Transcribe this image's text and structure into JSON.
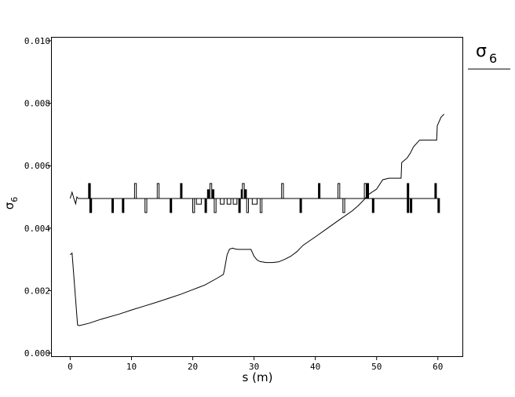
{
  "chart_data": {
    "type": "line",
    "title": "",
    "xlabel": "s (m)",
    "ylabel": "σ6",
    "xlim": [
      -3,
      64
    ],
    "ylim": [
      -0.0001,
      0.0101
    ],
    "x_ticks": [
      0,
      10,
      20,
      30,
      40,
      50,
      60
    ],
    "x_tick_labels": [
      "0",
      "10",
      "20",
      "30",
      "40",
      "50",
      "60"
    ],
    "y_ticks": [
      0.0,
      0.002,
      0.004,
      0.006,
      0.008,
      0.01
    ],
    "y_tick_labels": [
      "0.000",
      "0.002",
      "0.004",
      "0.006",
      "0.008",
      "0.010"
    ],
    "grid": false,
    "legend": {
      "position": "top-right",
      "entries": [
        "σ6"
      ]
    },
    "series": [
      {
        "name": "σ6",
        "x": [
          0.0,
          0.3,
          1.2,
          1.5,
          3.0,
          5.0,
          8.0,
          10.0,
          12.0,
          14.0,
          16.0,
          18.0,
          20.0,
          22.0,
          24.0,
          25.0,
          25.2,
          25.6,
          26.0,
          26.5,
          27.0,
          27.5,
          28.0,
          29.5,
          30.0,
          30.5,
          31.0,
          32.0,
          33.0,
          34.0,
          35.0,
          36.0,
          37.0,
          38.0,
          40.0,
          42.0,
          44.0,
          46.0,
          47.0,
          48.0,
          48.5,
          49.0,
          50.0,
          51.0,
          52.0,
          53.0,
          54.0,
          54.1,
          55.0,
          55.5,
          56.0,
          57.0,
          58.0,
          59.0,
          59.8,
          59.9,
          60.5,
          61.0
        ],
        "y": [
          0.00315,
          0.0032,
          0.0009,
          0.00088,
          0.00095,
          0.00108,
          0.00125,
          0.00138,
          0.0015,
          0.00162,
          0.00175,
          0.00188,
          0.00203,
          0.00218,
          0.0024,
          0.00252,
          0.0027,
          0.00315,
          0.00333,
          0.00336,
          0.00333,
          0.00332,
          0.00332,
          0.00332,
          0.0031,
          0.00298,
          0.00293,
          0.0029,
          0.0029,
          0.00292,
          0.003,
          0.0031,
          0.00325,
          0.00345,
          0.00372,
          0.004,
          0.00428,
          0.00455,
          0.00472,
          0.00492,
          0.00505,
          0.00512,
          0.00525,
          0.00555,
          0.0056,
          0.0056,
          0.0056,
          0.0061,
          0.00625,
          0.0064,
          0.0066,
          0.00682,
          0.00682,
          0.00682,
          0.00682,
          0.00728,
          0.00755,
          0.00765
        ]
      }
    ],
    "lattice": {
      "baseline_y": 0.00495,
      "small_wiggle": {
        "x": [
          0.0,
          0.3,
          0.6,
          0.9,
          1.1,
          1.3
        ],
        "y": [
          0.00495,
          0.00515,
          0.00495,
          0.00478,
          0.005,
          0.00495
        ]
      },
      "elements": [
        {
          "x": 3.0,
          "w": 0.3,
          "h": 0.00048,
          "fill": true
        },
        {
          "x": 3.2,
          "w": 0.3,
          "h": -0.00045,
          "fill": true
        },
        {
          "x": 6.8,
          "w": 0.15,
          "h": -0.00045,
          "fill": true
        },
        {
          "x": 8.5,
          "w": 0.15,
          "h": -0.00045,
          "fill": true
        },
        {
          "x": 10.5,
          "w": 0.3,
          "h": 0.00048,
          "fill": false
        },
        {
          "x": 12.2,
          "w": 0.3,
          "h": -0.00045,
          "fill": false
        },
        {
          "x": 14.2,
          "w": 0.3,
          "h": 0.00048,
          "fill": false
        },
        {
          "x": 16.3,
          "w": 0.15,
          "h": -0.00045,
          "fill": true
        },
        {
          "x": 18.0,
          "w": 0.15,
          "h": 0.00048,
          "fill": true
        },
        {
          "x": 20.0,
          "w": 0.3,
          "h": -0.00045,
          "fill": false
        },
        {
          "x": 20.6,
          "w": 0.8,
          "h": -0.00018,
          "fill": false
        },
        {
          "x": 22.0,
          "w": 0.15,
          "h": -0.00045,
          "fill": true
        },
        {
          "x": 22.4,
          "w": 0.15,
          "h": 0.00028,
          "fill": true
        },
        {
          "x": 22.8,
          "w": 0.3,
          "h": 0.00048,
          "fill": false
        },
        {
          "x": 23.2,
          "w": 0.15,
          "h": 0.00028,
          "fill": true
        },
        {
          "x": 23.5,
          "w": 0.3,
          "h": -0.00045,
          "fill": false
        },
        {
          "x": 24.5,
          "w": 0.6,
          "h": -0.00018,
          "fill": false
        },
        {
          "x": 25.6,
          "w": 0.6,
          "h": -0.00018,
          "fill": false
        },
        {
          "x": 26.6,
          "w": 0.6,
          "h": -0.00018,
          "fill": false
        },
        {
          "x": 27.5,
          "w": 0.15,
          "h": -0.00045,
          "fill": true
        },
        {
          "x": 27.9,
          "w": 0.15,
          "h": 0.00028,
          "fill": true
        },
        {
          "x": 28.1,
          "w": 0.3,
          "h": 0.00048,
          "fill": false
        },
        {
          "x": 28.5,
          "w": 0.15,
          "h": 0.00028,
          "fill": true
        },
        {
          "x": 28.8,
          "w": 0.3,
          "h": -0.00045,
          "fill": false
        },
        {
          "x": 29.7,
          "w": 0.8,
          "h": -0.00018,
          "fill": false
        },
        {
          "x": 31.0,
          "w": 0.3,
          "h": -0.00045,
          "fill": false
        },
        {
          "x": 34.5,
          "w": 0.3,
          "h": 0.00048,
          "fill": false
        },
        {
          "x": 37.5,
          "w": 0.15,
          "h": -0.00045,
          "fill": true
        },
        {
          "x": 40.5,
          "w": 0.15,
          "h": 0.00048,
          "fill": true
        },
        {
          "x": 43.7,
          "w": 0.3,
          "h": 0.00048,
          "fill": false
        },
        {
          "x": 44.5,
          "w": 0.3,
          "h": -0.00045,
          "fill": false
        },
        {
          "x": 48.0,
          "w": 0.3,
          "h": 0.00048,
          "fill": false
        },
        {
          "x": 48.4,
          "w": 0.3,
          "h": 0.00048,
          "fill": true
        },
        {
          "x": 49.3,
          "w": 0.15,
          "h": -0.00045,
          "fill": true
        },
        {
          "x": 55.0,
          "w": 0.15,
          "h": 0.00048,
          "fill": true
        },
        {
          "x": 55.0,
          "w": 0.15,
          "h": -0.00045,
          "fill": true
        },
        {
          "x": 55.5,
          "w": 0.15,
          "h": -0.00045,
          "fill": true
        },
        {
          "x": 59.5,
          "w": 0.15,
          "h": 0.00048,
          "fill": true
        },
        {
          "x": 60.0,
          "w": 0.15,
          "h": -0.00045,
          "fill": true
        }
      ]
    }
  },
  "legend_text": {
    "symbol": "σ",
    "subscript": "6"
  },
  "ylabel_text": {
    "symbol": "σ",
    "subscript": "6"
  }
}
